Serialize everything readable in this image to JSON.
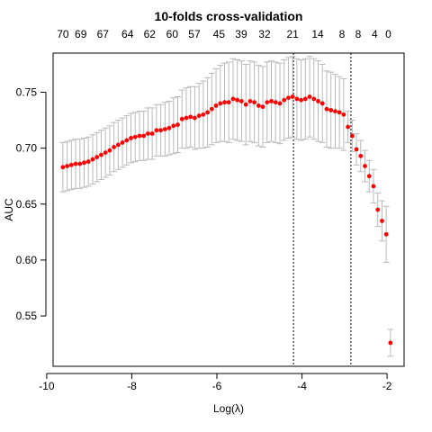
{
  "chart_data": {
    "type": "scatter",
    "title": "10-folds cross-validation",
    "xlabel": "Log(λ)",
    "ylabel": "AUC",
    "xlim": [
      -9.85,
      -1.6
    ],
    "ylim": [
      0.505,
      0.785
    ],
    "x_ticks": [
      -10,
      -8,
      -6,
      -4,
      -2
    ],
    "y_ticks": [
      0.55,
      0.6,
      0.65,
      0.7,
      0.75
    ],
    "top_axis": {
      "positions": [
        -9.62,
        -9.2,
        -8.68,
        -8.1,
        -7.58,
        -7.05,
        -6.53,
        -5.95,
        -5.43,
        -4.88,
        -4.22,
        -3.63,
        -3.06,
        -2.68,
        -2.29,
        -1.97
      ],
      "labels": [
        "70",
        "69",
        "67",
        "64",
        "62",
        "60",
        "57",
        "45",
        "39",
        "32",
        "21",
        "14",
        "8",
        "8",
        "4",
        "0"
      ]
    },
    "vlines": [
      -4.2,
      -2.85
    ],
    "series": [
      {
        "x": [
          -9.62,
          -9.52,
          -9.42,
          -9.32,
          -9.22,
          -9.12,
          -9.02,
          -8.92,
          -8.82,
          -8.72,
          -8.62,
          -8.52,
          -8.42,
          -8.32,
          -8.22,
          -8.12,
          -8.02,
          -7.92,
          -7.82,
          -7.72,
          -7.62,
          -7.52,
          -7.42,
          -7.32,
          -7.22,
          -7.12,
          -7.02,
          -6.92,
          -6.82,
          -6.72,
          -6.62,
          -6.52,
          -6.42,
          -6.32,
          -6.22,
          -6.12,
          -6.02,
          -5.92,
          -5.82,
          -5.72,
          -5.62,
          -5.52,
          -5.42,
          -5.32,
          -5.22,
          -5.12,
          -5.02,
          -4.92,
          -4.82,
          -4.72,
          -4.62,
          -4.52,
          -4.42,
          -4.32,
          -4.22,
          -4.12,
          -4.02,
          -3.92,
          -3.82,
          -3.72,
          -3.62,
          -3.52,
          -3.42,
          -3.32,
          -3.22,
          -3.12,
          -3.02,
          -2.92,
          -2.82,
          -2.72,
          -2.62,
          -2.52,
          -2.42,
          -2.32,
          -2.22,
          -2.12,
          -2.02,
          -1.92
        ],
        "y": [
          0.683,
          0.684,
          0.685,
          0.686,
          0.686,
          0.687,
          0.688,
          0.69,
          0.692,
          0.694,
          0.696,
          0.698,
          0.701,
          0.703,
          0.705,
          0.707,
          0.709,
          0.71,
          0.711,
          0.711,
          0.713,
          0.713,
          0.716,
          0.716,
          0.717,
          0.718,
          0.72,
          0.721,
          0.726,
          0.727,
          0.728,
          0.727,
          0.729,
          0.73,
          0.732,
          0.735,
          0.738,
          0.74,
          0.741,
          0.741,
          0.744,
          0.743,
          0.742,
          0.739,
          0.742,
          0.741,
          0.738,
          0.737,
          0.741,
          0.742,
          0.741,
          0.74,
          0.743,
          0.745,
          0.746,
          0.744,
          0.743,
          0.744,
          0.746,
          0.744,
          0.742,
          0.74,
          0.735,
          0.734,
          0.733,
          0.732,
          0.73,
          0.719,
          0.711,
          0.699,
          0.693,
          0.684,
          0.675,
          0.666,
          0.645,
          0.635,
          0.623,
          0.526
        ],
        "err": [
          0.022,
          0.022,
          0.022,
          0.022,
          0.022,
          0.022,
          0.022,
          0.022,
          0.022,
          0.022,
          0.022,
          0.022,
          0.022,
          0.022,
          0.022,
          0.022,
          0.022,
          0.022,
          0.022,
          0.022,
          0.023,
          0.023,
          0.023,
          0.023,
          0.024,
          0.024,
          0.025,
          0.025,
          0.026,
          0.027,
          0.027,
          0.028,
          0.029,
          0.03,
          0.031,
          0.032,
          0.033,
          0.034,
          0.035,
          0.036,
          0.036,
          0.036,
          0.036,
          0.036,
          0.036,
          0.036,
          0.036,
          0.036,
          0.036,
          0.036,
          0.036,
          0.036,
          0.036,
          0.036,
          0.036,
          0.036,
          0.036,
          0.036,
          0.036,
          0.036,
          0.036,
          0.035,
          0.034,
          0.034,
          0.033,
          0.032,
          0.032,
          0.014,
          0.014,
          0.014,
          0.014,
          0.014,
          0.014,
          0.015,
          0.015,
          0.018,
          0.025,
          0.012
        ]
      }
    ],
    "colors": {
      "point": "#ff0000",
      "error_bar": "#b9b9b9",
      "vline": "#000000"
    },
    "grid": false,
    "legend": "none"
  }
}
